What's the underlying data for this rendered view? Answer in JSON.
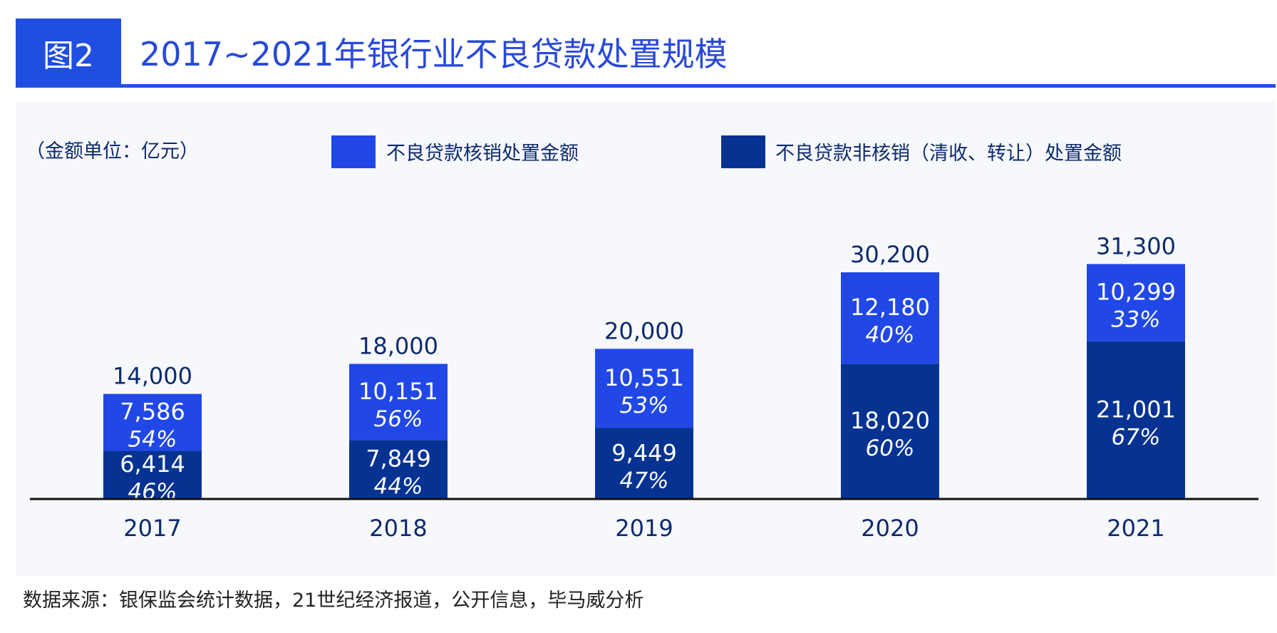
{
  "header": {
    "badge": "图2",
    "title": "2017~2021年银行业不良贷款处置规模"
  },
  "colors": {
    "brand": "#1f4ee0",
    "series_writeoff": "#2148e6",
    "series_nonwriteoff": "#063392",
    "text_dark": "#0c2a6e",
    "axis": "#111111"
  },
  "chart_data": {
    "type": "bar",
    "stacked": true,
    "unit_label": "（金额单位：亿元）",
    "categories": [
      "2017",
      "2018",
      "2019",
      "2020",
      "2021"
    ],
    "series": [
      {
        "name": "不良贷款非核销（清收、转让）处置金额",
        "values": [
          6414,
          7849,
          9449,
          18020,
          21001
        ],
        "value_labels": [
          "6,414",
          "7,849",
          "9,449",
          "18,020",
          "21,001"
        ],
        "percent_labels": [
          "46%",
          "44%",
          "47%",
          "60%",
          "67%"
        ]
      },
      {
        "name": "不良贷款核销处置金额",
        "values": [
          7586,
          10151,
          10551,
          12180,
          10299
        ],
        "value_labels": [
          "7,586",
          "10,151",
          "10,551",
          "12,180",
          "10,299"
        ],
        "percent_labels": [
          "54%",
          "56%",
          "53%",
          "40%",
          "33%"
        ]
      }
    ],
    "totals": [
      14000,
      18000,
      20000,
      30200,
      31300
    ],
    "total_labels": [
      "14,000",
      "18,000",
      "20,000",
      "30,200",
      "31,300"
    ],
    "legend": [
      "不良贷款核销处置金额",
      "不良贷款非核销（清收、转让）处置金额"
    ],
    "legend_position": "top",
    "ylim": [
      0,
      32000
    ],
    "grid": false
  },
  "footer": {
    "source": "数据来源：银保监会统计数据，21世纪经济报道，公开信息，毕马威分析"
  }
}
